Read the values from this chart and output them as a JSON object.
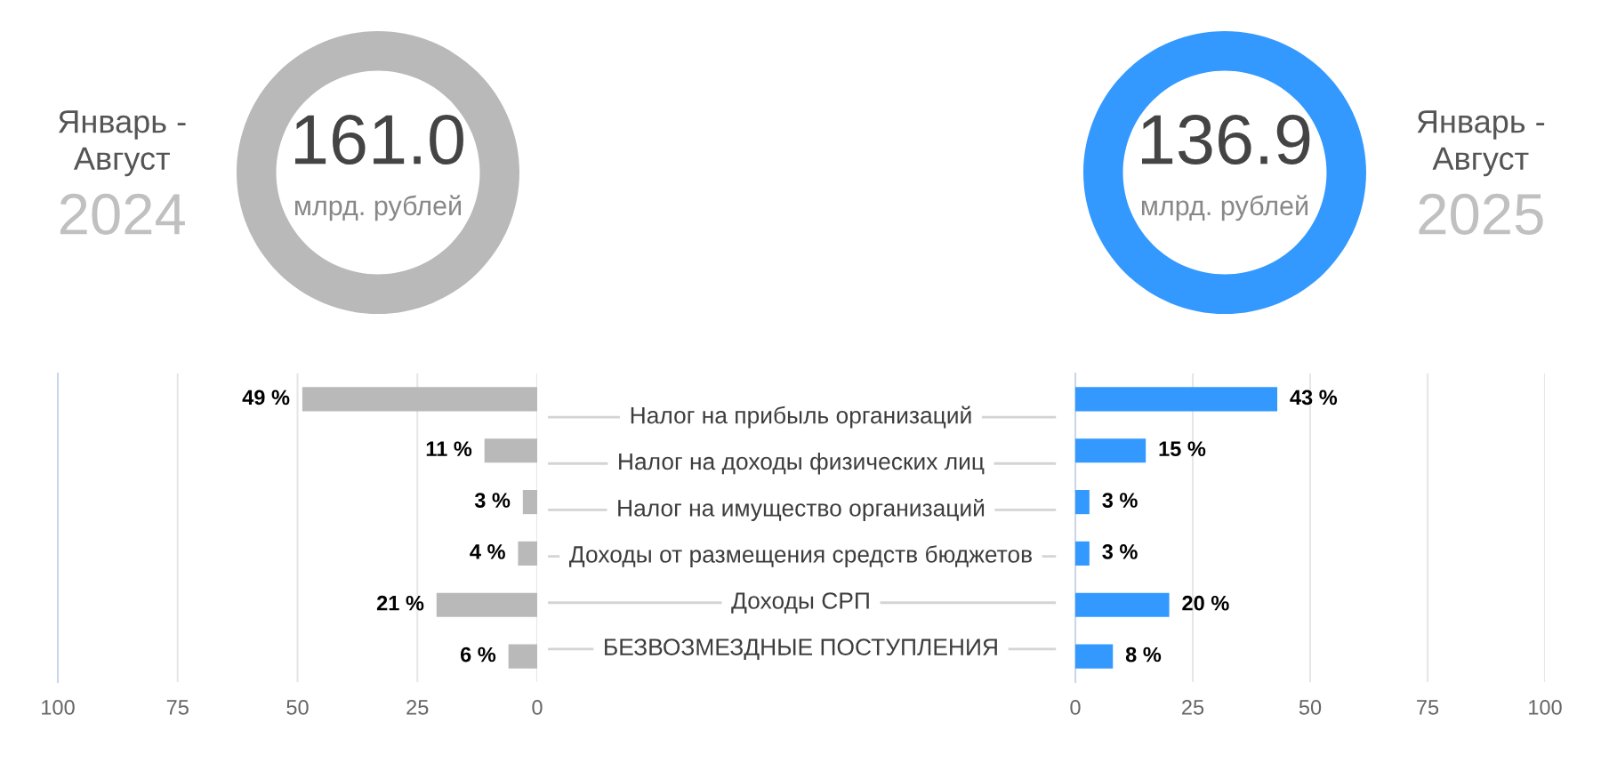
{
  "chart_data": [
    {
      "type": "other",
      "title": "Январь -\nАвгуст",
      "subtitle": "2024",
      "values": [
        161.0
      ],
      "value_labels": [
        "161.0"
      ],
      "annotations": [
        "млрд. рублей"
      ]
    },
    {
      "type": "other",
      "title": "Январь -\nАвгуст",
      "subtitle": "2025",
      "values": [
        136.9
      ],
      "value_labels": [
        "136.9"
      ],
      "annotations": [
        "млрд. рублей"
      ]
    },
    {
      "type": "bar",
      "orientation": "horizontal",
      "categories": [
        "Налог на прибыль организаций",
        "Налог на доходы физических лиц",
        "Налог на имущество организаций",
        "Доходы от размещения средств бюджетов",
        "Доходы СРП",
        "БЕЗВОЗМЕЗДНЫЕ ПОСТУПЛЕНИЯ"
      ],
      "values": [
        49,
        11,
        3,
        4,
        21,
        6
      ],
      "color": "#b9b9b9",
      "value_labels": [
        "49 %",
        "11 %",
        "3 %",
        "4 %",
        "21 %",
        "6 %"
      ],
      "xlim": [
        100,
        0
      ],
      "xticks": [
        100,
        75,
        50,
        25,
        0
      ],
      "grid": "x"
    },
    {
      "type": "bar",
      "orientation": "horizontal",
      "categories": [
        "Налог на прибыль организаций",
        "Налог на доходы физических лиц",
        "Налог на имущество организаций",
        "Доходы от размещения средств бюджетов",
        "Доходы СРП",
        "БЕЗВОЗМЕЗДНЫЕ ПОСТУПЛЕНИЯ"
      ],
      "values": [
        43,
        15,
        3,
        3,
        20,
        8
      ],
      "color": "#3399ff",
      "value_labels": [
        "43 %",
        "15 %",
        "3 %",
        "3 %",
        "20 %",
        "8 %"
      ],
      "xlim": [
        0,
        100
      ],
      "xticks": [
        0,
        25,
        50,
        75,
        100
      ],
      "grid": "x",
      "tick_labels": "x"
    }
  ]
}
